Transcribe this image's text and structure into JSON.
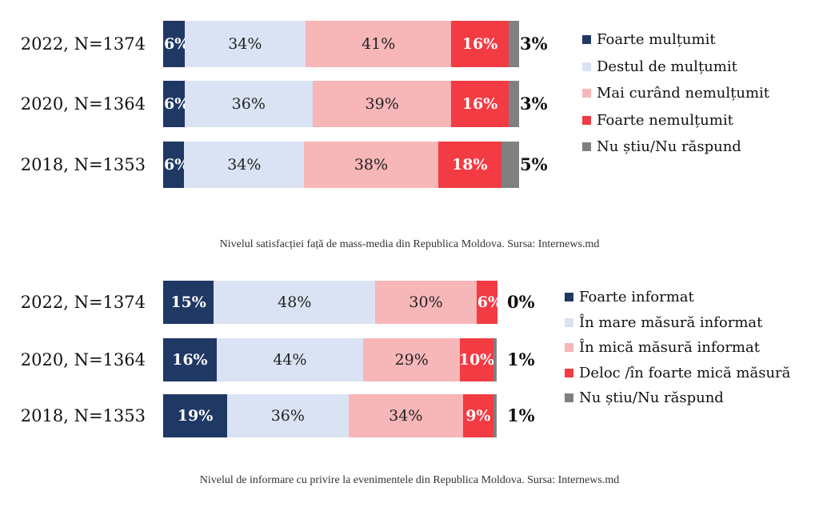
{
  "chart_data": [
    {
      "type": "bar",
      "orientation": "horizontal-stacked-100",
      "categories": [
        "2022, N=1374",
        "2020, N=1364",
        "2018, N=1353"
      ],
      "series": [
        {
          "name": "Foarte mulțumit",
          "color": "#1f3864",
          "values": [
            6,
            6,
            6
          ]
        },
        {
          "name": "Destul de mulțumit",
          "color": "#dae3f3",
          "values": [
            34,
            36,
            34
          ]
        },
        {
          "name": "Mai curând nemulțumit",
          "color": "#f7b6b8",
          "values": [
            41,
            39,
            38
          ]
        },
        {
          "name": "Foarte nemulțumit",
          "color": "#f23b43",
          "values": [
            16,
            16,
            18
          ]
        },
        {
          "name": "Nu știu/Nu răspund",
          "color": "#808080",
          "values": [
            3,
            3,
            5
          ]
        }
      ],
      "value_suffix": "%",
      "legend_position": "right"
    },
    {
      "type": "bar",
      "orientation": "horizontal-stacked-100",
      "categories": [
        "2022, N=1374",
        "2020, N=1364",
        "2018, N=1353"
      ],
      "series": [
        {
          "name": "Foarte informat",
          "color": "#1f3864",
          "values": [
            15,
            16,
            19
          ]
        },
        {
          "name": "În mare măsură informat",
          "color": "#dae3f3",
          "values": [
            48,
            44,
            36
          ]
        },
        {
          "name": "În mică măsură informat",
          "color": "#f7b6b8",
          "values": [
            30,
            29,
            34
          ]
        },
        {
          "name": "Deloc /în foarte mică măsură",
          "color": "#f23b43",
          "values": [
            6,
            10,
            9
          ]
        },
        {
          "name": "Nu știu/Nu răspund",
          "color": "#808080",
          "values": [
            0,
            1,
            1
          ]
        }
      ],
      "value_suffix": "%",
      "legend_position": "right"
    }
  ],
  "captions": [
    "Nivelul satisfacției față de mass-media din Republica Moldova. Sursa: Internews.md",
    "Nivelul de informare cu privire la evenimentele din Republica Moldova. Sursa: Internews.md"
  ]
}
